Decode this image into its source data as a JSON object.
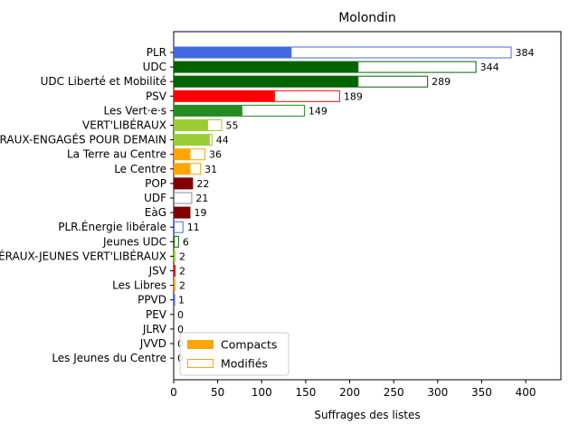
{
  "chart_data": {
    "type": "bar",
    "orientation": "horizontal",
    "stacked": true,
    "title": "Molondin",
    "xlabel": "Suffrages des listes",
    "ylabel": "",
    "xlim": [
      0,
      440
    ],
    "xticks": [
      0,
      50,
      100,
      150,
      200,
      250,
      300,
      350,
      400
    ],
    "grid": false,
    "legend_position": "lower-left",
    "legend": [
      {
        "label": "Compacts",
        "style": "filled",
        "color": "#FFA500"
      },
      {
        "label": "Modifiés",
        "style": "outline",
        "color": "#FFA500"
      }
    ],
    "categories": [
      "PLR",
      "UDC",
      "UDC Liberté et Mobilité",
      "PSV",
      "Les Vert·e·s",
      "VERT'LIBÉRAUX",
      "VERT'LIBÉRAUX-ENGAGÉS POUR DEMAIN",
      "La Terre au Centre",
      "Le Centre",
      "POP",
      "UDF",
      "EàG",
      "PLR.Énergie libérale",
      "Jeunes UDC",
      "JEUNES VERT'LIBÉRAUX-JEUNES VERT'LIBÉRAUX",
      "JSV",
      "Les Libres",
      "PPVD",
      "PEV",
      "JLRV",
      "JVVD",
      "Les Jeunes du Centre"
    ],
    "series": [
      {
        "name": "Compacts",
        "values": [
          133,
          209,
          209,
          114,
          77,
          38,
          40,
          18,
          18,
          20,
          0,
          19,
          0,
          0,
          0,
          0,
          0,
          0,
          0,
          0,
          0,
          0
        ]
      },
      {
        "name": "Modifiés",
        "values": [
          251,
          135,
          80,
          75,
          72,
          17,
          4,
          18,
          13,
          2,
          21,
          0,
          11,
          6,
          2,
          2,
          2,
          1,
          0,
          0,
          0,
          0
        ]
      }
    ],
    "totals": [
      384,
      344,
      289,
      189,
      149,
      55,
      44,
      36,
      31,
      22,
      21,
      19,
      11,
      6,
      2,
      2,
      2,
      1,
      0,
      0,
      0,
      0
    ],
    "colors": [
      "#4169E1",
      "#006400",
      "#006400",
      "#FF0000",
      "#228B22",
      "#9ACD32",
      "#9ACD32",
      "#FFA500",
      "#FFA500",
      "#800000",
      "#8E8E9E",
      "#800000",
      "#4169E1",
      "#006400",
      "#9ACD32",
      "#FF0000",
      "#FFA500",
      "#4169E1",
      "#FFA500",
      "#4169E1",
      "#006400",
      "#FFA500"
    ]
  }
}
